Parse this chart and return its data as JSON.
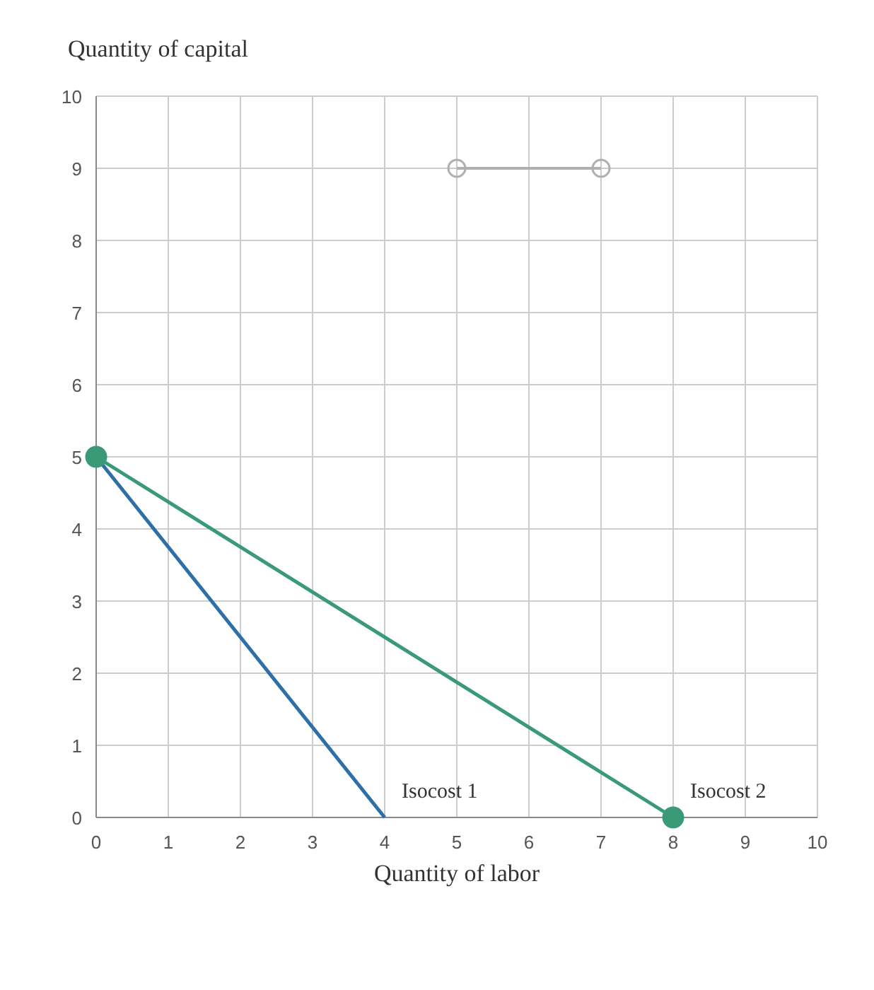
{
  "chart_data": {
    "type": "line",
    "xlabel": "Quantity of labor",
    "ylabel": "Quantity of capital",
    "xlim": [
      0,
      10
    ],
    "ylim": [
      0,
      10
    ],
    "xticks": [
      0,
      1,
      2,
      3,
      4,
      5,
      6,
      7,
      8,
      9,
      10
    ],
    "yticks": [
      0,
      1,
      2,
      3,
      4,
      5,
      6,
      7,
      8,
      9,
      10
    ],
    "grid": true,
    "series": [
      {
        "name": "Isocost 1",
        "color": "#2f6fa8",
        "x": [
          0,
          4
        ],
        "values": [
          5,
          0
        ],
        "marker": "none"
      },
      {
        "name": "Isocost 2",
        "color": "#3a9a78",
        "x": [
          0,
          8
        ],
        "values": [
          5,
          0
        ],
        "marker": "circle"
      },
      {
        "color": "#b0b0b0",
        "x": [
          5,
          7
        ],
        "values": [
          9,
          9
        ],
        "marker": "circle"
      }
    ]
  }
}
